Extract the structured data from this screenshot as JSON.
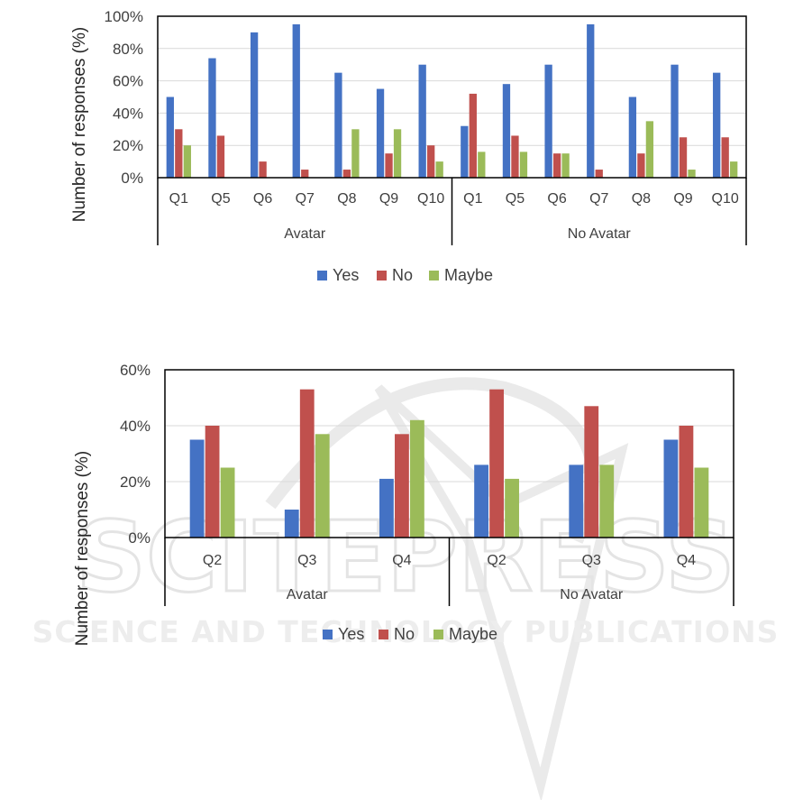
{
  "colors": {
    "Yes": "#4472c4",
    "No": "#c0504d",
    "Maybe": "#9bbb59",
    "watermark": "#d9d9d9"
  },
  "watermark": {
    "main": "SCITEPRESS",
    "sub": "SCIENCE AND TECHNOLOGY PUBLICATIONS"
  },
  "chart_data": [
    {
      "type": "bar",
      "ylabel": "Number of responses (%)",
      "ylim": [
        0,
        100
      ],
      "yticks": [
        "0%",
        "20%",
        "40%",
        "60%",
        "80%",
        "100%"
      ],
      "grid": true,
      "legend_position": "bottom",
      "groups": [
        {
          "name": "Avatar",
          "categories": [
            "Q1",
            "Q5",
            "Q6",
            "Q7",
            "Q8",
            "Q9",
            "Q10"
          ]
        },
        {
          "name": "No Avatar",
          "categories": [
            "Q1",
            "Q5",
            "Q6",
            "Q7",
            "Q8",
            "Q9",
            "Q10"
          ]
        }
      ],
      "series": [
        {
          "name": "Yes",
          "values": [
            50,
            74,
            90,
            95,
            65,
            55,
            70,
            32,
            58,
            70,
            95,
            50,
            70,
            65
          ]
        },
        {
          "name": "No",
          "values": [
            30,
            26,
            10,
            5,
            5,
            15,
            20,
            52,
            26,
            15,
            5,
            15,
            25,
            25
          ]
        },
        {
          "name": "Maybe",
          "values": [
            20,
            0,
            0,
            0,
            30,
            30,
            10,
            16,
            16,
            15,
            0,
            35,
            5,
            10
          ]
        }
      ]
    },
    {
      "type": "bar",
      "ylabel": "Number of responses (%)",
      "ylim": [
        0,
        60
      ],
      "yticks": [
        "0%",
        "20%",
        "40%",
        "60%"
      ],
      "grid": true,
      "legend_position": "bottom",
      "groups": [
        {
          "name": "Avatar",
          "categories": [
            "Q2",
            "Q3",
            "Q4"
          ]
        },
        {
          "name": "No Avatar",
          "categories": [
            "Q2",
            "Q3",
            "Q4"
          ]
        }
      ],
      "series": [
        {
          "name": "Yes",
          "values": [
            35,
            10,
            21,
            26,
            26,
            35
          ]
        },
        {
          "name": "No",
          "values": [
            40,
            53,
            37,
            53,
            47,
            40
          ]
        },
        {
          "name": "Maybe",
          "values": [
            25,
            37,
            42,
            21,
            26,
            25
          ]
        }
      ]
    }
  ]
}
